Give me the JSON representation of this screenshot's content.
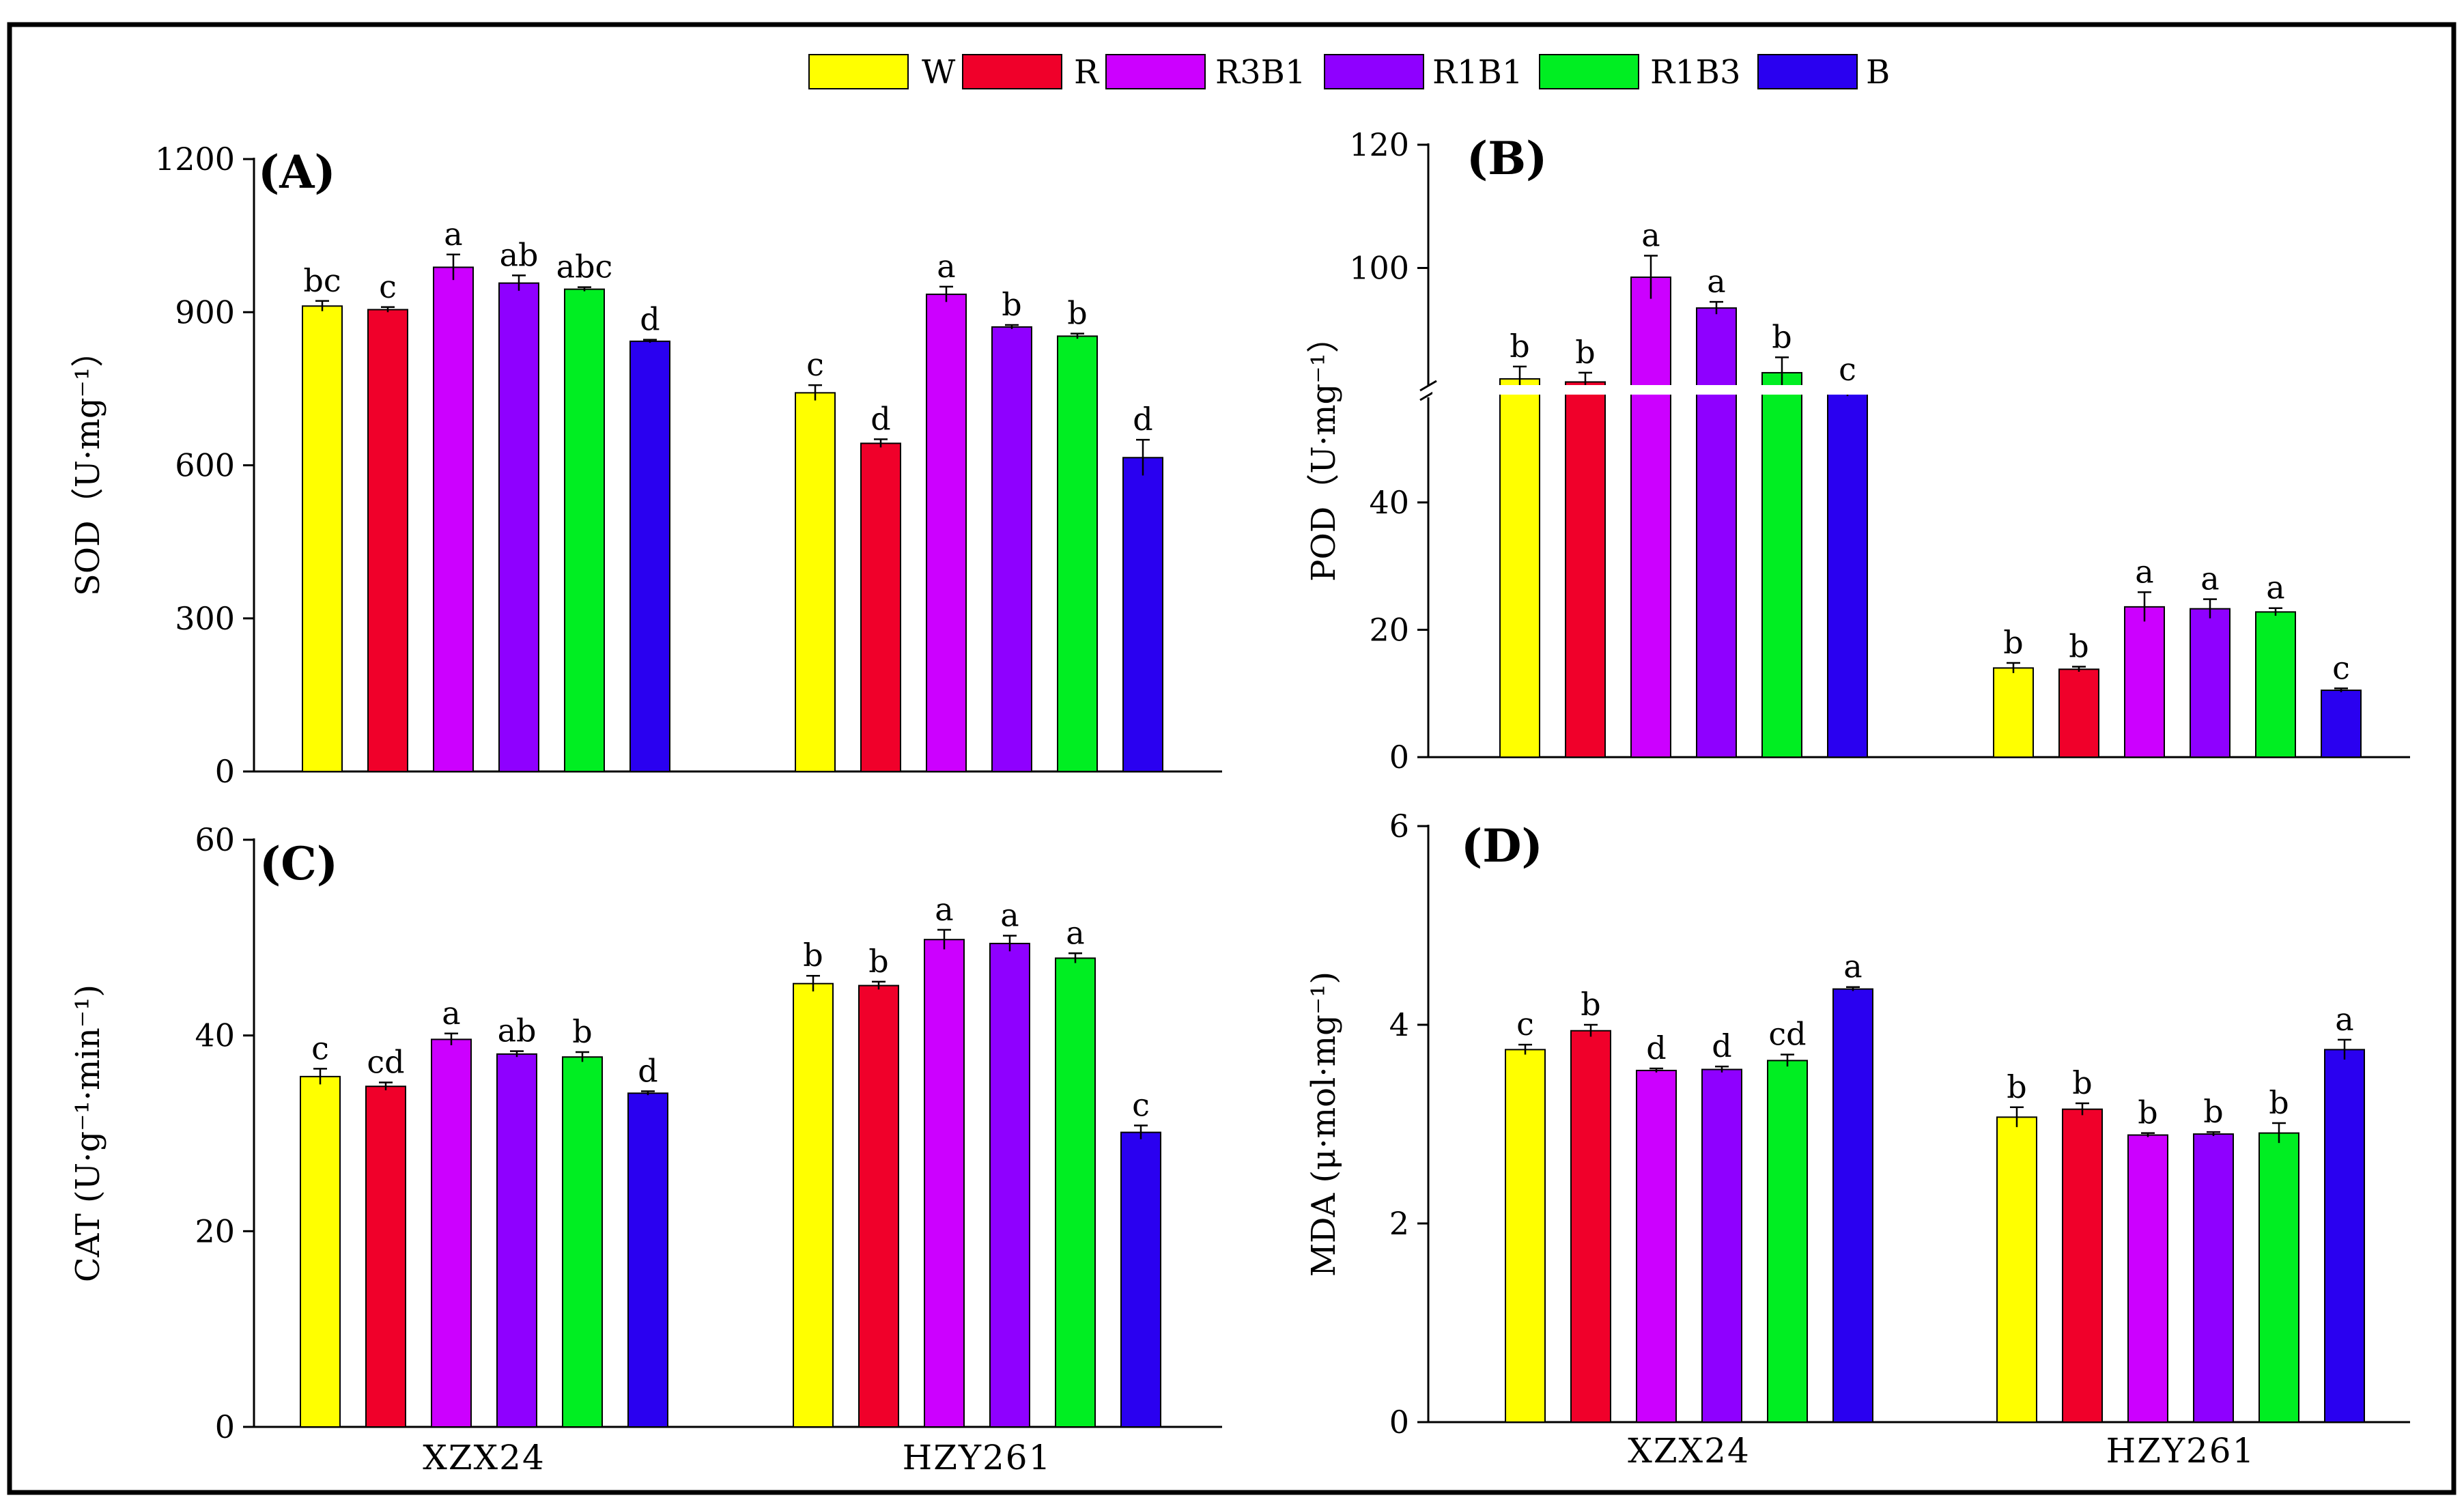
{
  "legend": [
    {
      "name": "W",
      "color": "#FFFF00"
    },
    {
      "name": "R",
      "color": "#F0002A"
    },
    {
      "name": "R3B1",
      "color": "#CC00FF"
    },
    {
      "name": "R1B1",
      "color": "#8F00FF"
    },
    {
      "name": "R1B3",
      "color": "#00EE22"
    },
    {
      "name": "B",
      "color": "#2A00F0"
    }
  ],
  "chart_data": [
    {
      "id": "A",
      "type": "bar",
      "panel_label": "(A)",
      "ylabel": "SOD（U·mg⁻¹）",
      "ylim": [
        0,
        1200
      ],
      "yticks": [
        "0",
        "300",
        "600",
        "900",
        "1200"
      ],
      "categories": [
        "XZX24",
        "HZY261"
      ],
      "show_categories": false,
      "series": [
        {
          "name": "W",
          "values": [
            912,
            742
          ],
          "errors": [
            10,
            15
          ],
          "letters": [
            "bc",
            "c"
          ]
        },
        {
          "name": "R",
          "values": [
            905,
            643
          ],
          "errors": [
            5,
            8
          ],
          "letters": [
            "c",
            "d"
          ]
        },
        {
          "name": "R3B1",
          "values": [
            988,
            935
          ],
          "errors": [
            25,
            15
          ],
          "letters": [
            "a",
            "a"
          ]
        },
        {
          "name": "R1B1",
          "values": [
            957,
            871
          ],
          "errors": [
            15,
            4
          ],
          "letters": [
            "ab",
            "b"
          ]
        },
        {
          "name": "R1B3",
          "values": [
            945,
            853
          ],
          "errors": [
            4,
            5
          ],
          "letters": [
            "abc",
            "b"
          ]
        },
        {
          "name": "B",
          "values": [
            843,
            615
          ],
          "errors": [
            3,
            35
          ],
          "letters": [
            "d",
            "d"
          ]
        }
      ]
    },
    {
      "id": "B",
      "type": "bar",
      "panel_label": "(B)",
      "ylabel": "POD（U·mg⁻¹）",
      "ylim": [
        0,
        120
      ],
      "axis_break": [
        58,
        80
      ],
      "yticks": [
        "0",
        "20",
        "40",
        "100",
        "120"
      ],
      "categories": [
        "XZX24",
        "HZY261"
      ],
      "show_categories": false,
      "series": [
        {
          "name": "W",
          "values": [
            82,
            14
          ],
          "errors": [
            2,
            0.8
          ],
          "letters": [
            "b",
            "b"
          ]
        },
        {
          "name": "R",
          "values": [
            81.5,
            13.8
          ],
          "errors": [
            1.5,
            0.4
          ],
          "letters": [
            "b",
            "b"
          ]
        },
        {
          "name": "R3B1",
          "values": [
            98.5,
            23.6
          ],
          "errors": [
            3.5,
            2.3
          ],
          "letters": [
            "a",
            "a"
          ]
        },
        {
          "name": "R1B1",
          "values": [
            93.5,
            23.3
          ],
          "errors": [
            1,
            1.5
          ],
          "letters": [
            "a",
            "a"
          ]
        },
        {
          "name": "R1B3",
          "values": [
            83,
            22.8
          ],
          "errors": [
            2.5,
            0.6
          ],
          "letters": [
            "b",
            "a"
          ]
        },
        {
          "name": "B",
          "values": [
            57.2,
            10.5
          ],
          "errors": [
            0.5,
            0.3
          ],
          "letters": [
            "c",
            "c"
          ]
        }
      ]
    },
    {
      "id": "C",
      "type": "bar",
      "panel_label": "(C)",
      "ylabel": "CAT (U·g⁻¹·min⁻¹)",
      "ylim": [
        0,
        60
      ],
      "yticks": [
        "0",
        "20",
        "40",
        "60"
      ],
      "categories": [
        "XZX24",
        "HZY261"
      ],
      "show_categories": true,
      "series": [
        {
          "name": "W",
          "values": [
            35.8,
            45.3
          ],
          "errors": [
            0.8,
            0.8
          ],
          "letters": [
            "c",
            "b"
          ]
        },
        {
          "name": "R",
          "values": [
            34.8,
            45.1
          ],
          "errors": [
            0.4,
            0.4
          ],
          "letters": [
            "cd",
            "b"
          ]
        },
        {
          "name": "R3B1",
          "values": [
            39.6,
            49.8
          ],
          "errors": [
            0.6,
            1.0
          ],
          "letters": [
            "a",
            "a"
          ]
        },
        {
          "name": "R1B1",
          "values": [
            38.1,
            49.4
          ],
          "errors": [
            0.3,
            0.8
          ],
          "letters": [
            "ab",
            "a"
          ]
        },
        {
          "name": "R1B3",
          "values": [
            37.8,
            47.9
          ],
          "errors": [
            0.5,
            0.5
          ],
          "letters": [
            "b",
            "a"
          ]
        },
        {
          "name": "B",
          "values": [
            34.1,
            30.1
          ],
          "errors": [
            0.2,
            0.7
          ],
          "letters": [
            "d",
            "c"
          ]
        }
      ]
    },
    {
      "id": "D",
      "type": "bar",
      "panel_label": "(D)",
      "ylabel": "MDA (μ·mol·mg⁻¹)",
      "ylim": [
        0,
        6
      ],
      "yticks": [
        "0",
        "2",
        "4",
        "6"
      ],
      "categories": [
        "XZX24",
        "HZY261"
      ],
      "show_categories": true,
      "series": [
        {
          "name": "W",
          "values": [
            3.75,
            3.07
          ],
          "errors": [
            0.05,
            0.1
          ],
          "letters": [
            "c",
            "b"
          ]
        },
        {
          "name": "R",
          "values": [
            3.94,
            3.15
          ],
          "errors": [
            0.06,
            0.06
          ],
          "letters": [
            "b",
            "b"
          ]
        },
        {
          "name": "R3B1",
          "values": [
            3.54,
            2.89
          ],
          "errors": [
            0.02,
            0.02
          ],
          "letters": [
            "d",
            "b"
          ]
        },
        {
          "name": "R1B1",
          "values": [
            3.55,
            2.9
          ],
          "errors": [
            0.03,
            0.02
          ],
          "letters": [
            "d",
            "b"
          ]
        },
        {
          "name": "R1B3",
          "values": [
            3.64,
            2.91
          ],
          "errors": [
            0.06,
            0.1
          ],
          "letters": [
            "cd",
            "b"
          ]
        },
        {
          "name": "B",
          "values": [
            4.36,
            3.75
          ],
          "errors": [
            0.02,
            0.1
          ],
          "letters": [
            "a",
            "a"
          ]
        }
      ]
    }
  ]
}
